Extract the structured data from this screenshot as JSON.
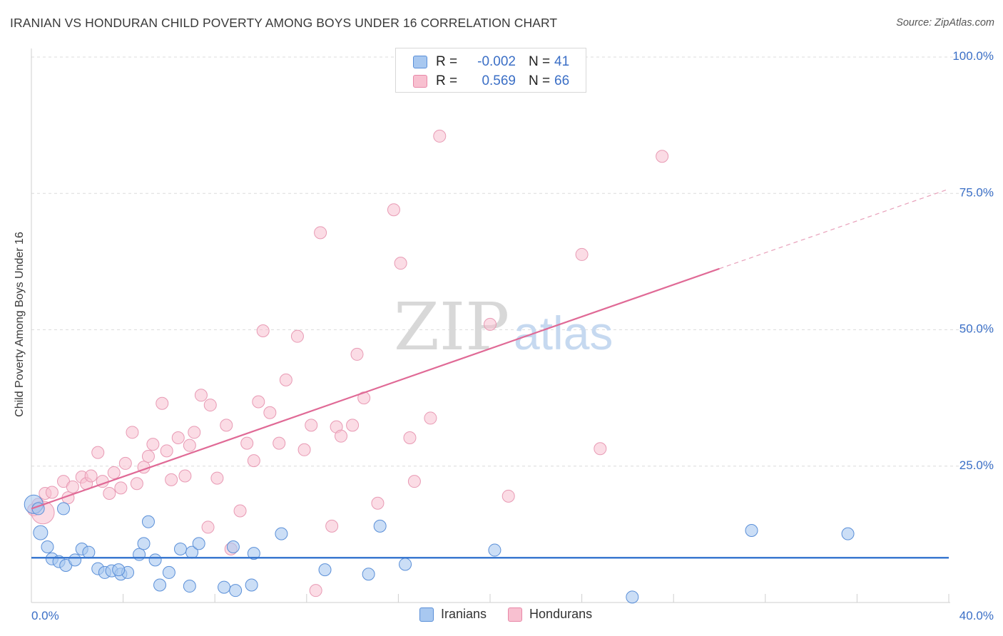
{
  "title": "IRANIAN VS HONDURAN CHILD POVERTY AMONG BOYS UNDER 16 CORRELATION CHART",
  "source": "Source: ZipAtlas.com",
  "watermark": {
    "zip": "ZIP",
    "atlas": "atlas"
  },
  "legend": {
    "rows": [
      {
        "r_label": "R =",
        "r_value": "-0.002",
        "n_label": "N =",
        "n_value": "41",
        "color": "#a8c8f0",
        "border": "#5a8fd8"
      },
      {
        "r_label": "R =",
        "r_value": "0.569",
        "n_label": "N =",
        "n_value": "66",
        "color": "#f8c0d0",
        "border": "#e888a8"
      }
    ]
  },
  "bottom_legend": {
    "iranians": "Iranians",
    "hondurans": "Hondurans"
  },
  "chart_data": {
    "type": "scatter",
    "title": "IRANIAN VS HONDURAN CHILD POVERTY AMONG BOYS UNDER 16 CORRELATION CHART",
    "xlabel": "",
    "ylabel": "Child Poverty Among Boys Under 16",
    "xlim": [
      0,
      40
    ],
    "ylim": [
      0,
      100
    ],
    "x_tick_labels": [
      "0.0%",
      "40.0%"
    ],
    "y_tick_labels": [
      "25.0%",
      "50.0%",
      "75.0%",
      "100.0%"
    ],
    "y_ticks": [
      25,
      50,
      75,
      100
    ],
    "colors": {
      "iranians": "#5a8fd8",
      "iranians_fill": "#a8c8f0",
      "hondurans": "#e07098",
      "hondurans_fill": "#f8c0d0",
      "axis_text": "#3b6fc6"
    },
    "series": [
      {
        "name": "Iranians",
        "points": [
          [
            0.1,
            18.0
          ],
          [
            0.4,
            12.8
          ],
          [
            0.7,
            10.2
          ],
          [
            0.9,
            8.0
          ],
          [
            1.2,
            7.5
          ],
          [
            1.5,
            6.8
          ],
          [
            1.4,
            17.2
          ],
          [
            1.9,
            7.8
          ],
          [
            2.2,
            9.8
          ],
          [
            2.5,
            9.2
          ],
          [
            2.9,
            6.2
          ],
          [
            3.2,
            5.5
          ],
          [
            3.5,
            5.8
          ],
          [
            3.9,
            5.2
          ],
          [
            4.2,
            5.5
          ],
          [
            4.7,
            8.8
          ],
          [
            4.9,
            10.8
          ],
          [
            5.1,
            14.8
          ],
          [
            5.4,
            7.8
          ],
          [
            5.6,
            3.2
          ],
          [
            6.0,
            5.5
          ],
          [
            6.5,
            9.8
          ],
          [
            6.9,
            3.0
          ],
          [
            7.0,
            9.2
          ],
          [
            7.3,
            10.8
          ],
          [
            8.4,
            2.8
          ],
          [
            8.8,
            10.2
          ],
          [
            8.9,
            2.2
          ],
          [
            9.6,
            3.2
          ],
          [
            9.7,
            9.0
          ],
          [
            10.9,
            12.6
          ],
          [
            12.8,
            6.0
          ],
          [
            14.7,
            5.2
          ],
          [
            15.2,
            14.0
          ],
          [
            16.3,
            7.0
          ],
          [
            20.2,
            9.6
          ],
          [
            31.4,
            13.2
          ],
          [
            35.6,
            12.6
          ],
          [
            26.2,
            1.0
          ],
          [
            3.8,
            6.0
          ],
          [
            0.3,
            17.2
          ]
        ],
        "trend": {
          "x0": 0,
          "y0": 8.2,
          "x1": 40,
          "y1": 8.2
        }
      },
      {
        "name": "Hondurans",
        "points": [
          [
            0.1,
            17.0
          ],
          [
            0.3,
            18.0
          ],
          [
            0.6,
            20.0
          ],
          [
            0.9,
            20.2
          ],
          [
            1.4,
            22.2
          ],
          [
            1.6,
            19.2
          ],
          [
            1.8,
            21.2
          ],
          [
            2.2,
            23.0
          ],
          [
            2.4,
            21.8
          ],
          [
            2.6,
            23.2
          ],
          [
            2.9,
            27.5
          ],
          [
            3.1,
            22.2
          ],
          [
            3.4,
            20.0
          ],
          [
            3.6,
            23.8
          ],
          [
            3.9,
            21.0
          ],
          [
            4.1,
            25.5
          ],
          [
            4.4,
            31.2
          ],
          [
            4.6,
            21.8
          ],
          [
            4.9,
            24.8
          ],
          [
            5.1,
            26.8
          ],
          [
            5.3,
            29.0
          ],
          [
            5.7,
            36.5
          ],
          [
            5.9,
            27.8
          ],
          [
            6.1,
            22.5
          ],
          [
            6.4,
            30.2
          ],
          [
            6.7,
            23.2
          ],
          [
            6.9,
            28.8
          ],
          [
            7.1,
            31.2
          ],
          [
            7.4,
            38.0
          ],
          [
            7.7,
            13.8
          ],
          [
            7.8,
            36.2
          ],
          [
            8.1,
            22.8
          ],
          [
            8.5,
            32.5
          ],
          [
            8.7,
            9.8
          ],
          [
            9.1,
            16.8
          ],
          [
            9.4,
            29.2
          ],
          [
            9.7,
            26.0
          ],
          [
            9.9,
            36.8
          ],
          [
            10.1,
            49.8
          ],
          [
            10.4,
            34.8
          ],
          [
            10.8,
            29.2
          ],
          [
            11.1,
            40.8
          ],
          [
            11.6,
            48.8
          ],
          [
            11.9,
            28.0
          ],
          [
            12.2,
            32.5
          ],
          [
            12.4,
            2.2
          ],
          [
            12.6,
            67.8
          ],
          [
            13.1,
            14.0
          ],
          [
            13.3,
            32.2
          ],
          [
            13.5,
            30.5
          ],
          [
            14.0,
            32.5
          ],
          [
            14.2,
            45.5
          ],
          [
            14.5,
            37.5
          ],
          [
            15.1,
            18.2
          ],
          [
            15.8,
            72.0
          ],
          [
            16.1,
            62.2
          ],
          [
            16.5,
            30.2
          ],
          [
            16.7,
            22.2
          ],
          [
            17.4,
            33.8
          ],
          [
            17.8,
            85.5
          ],
          [
            20.0,
            51.0
          ],
          [
            20.8,
            19.5
          ],
          [
            24.0,
            63.8
          ],
          [
            24.8,
            28.2
          ],
          [
            27.5,
            81.8
          ],
          [
            0.5,
            16.5
          ]
        ],
        "trend": {
          "x0": 0,
          "y0": 17.2,
          "x1": 30.0,
          "y1": 61.2
        },
        "trend_dashed": {
          "x0": 30.0,
          "y0": 61.2,
          "x1": 40,
          "y1": 75.8
        }
      }
    ]
  }
}
